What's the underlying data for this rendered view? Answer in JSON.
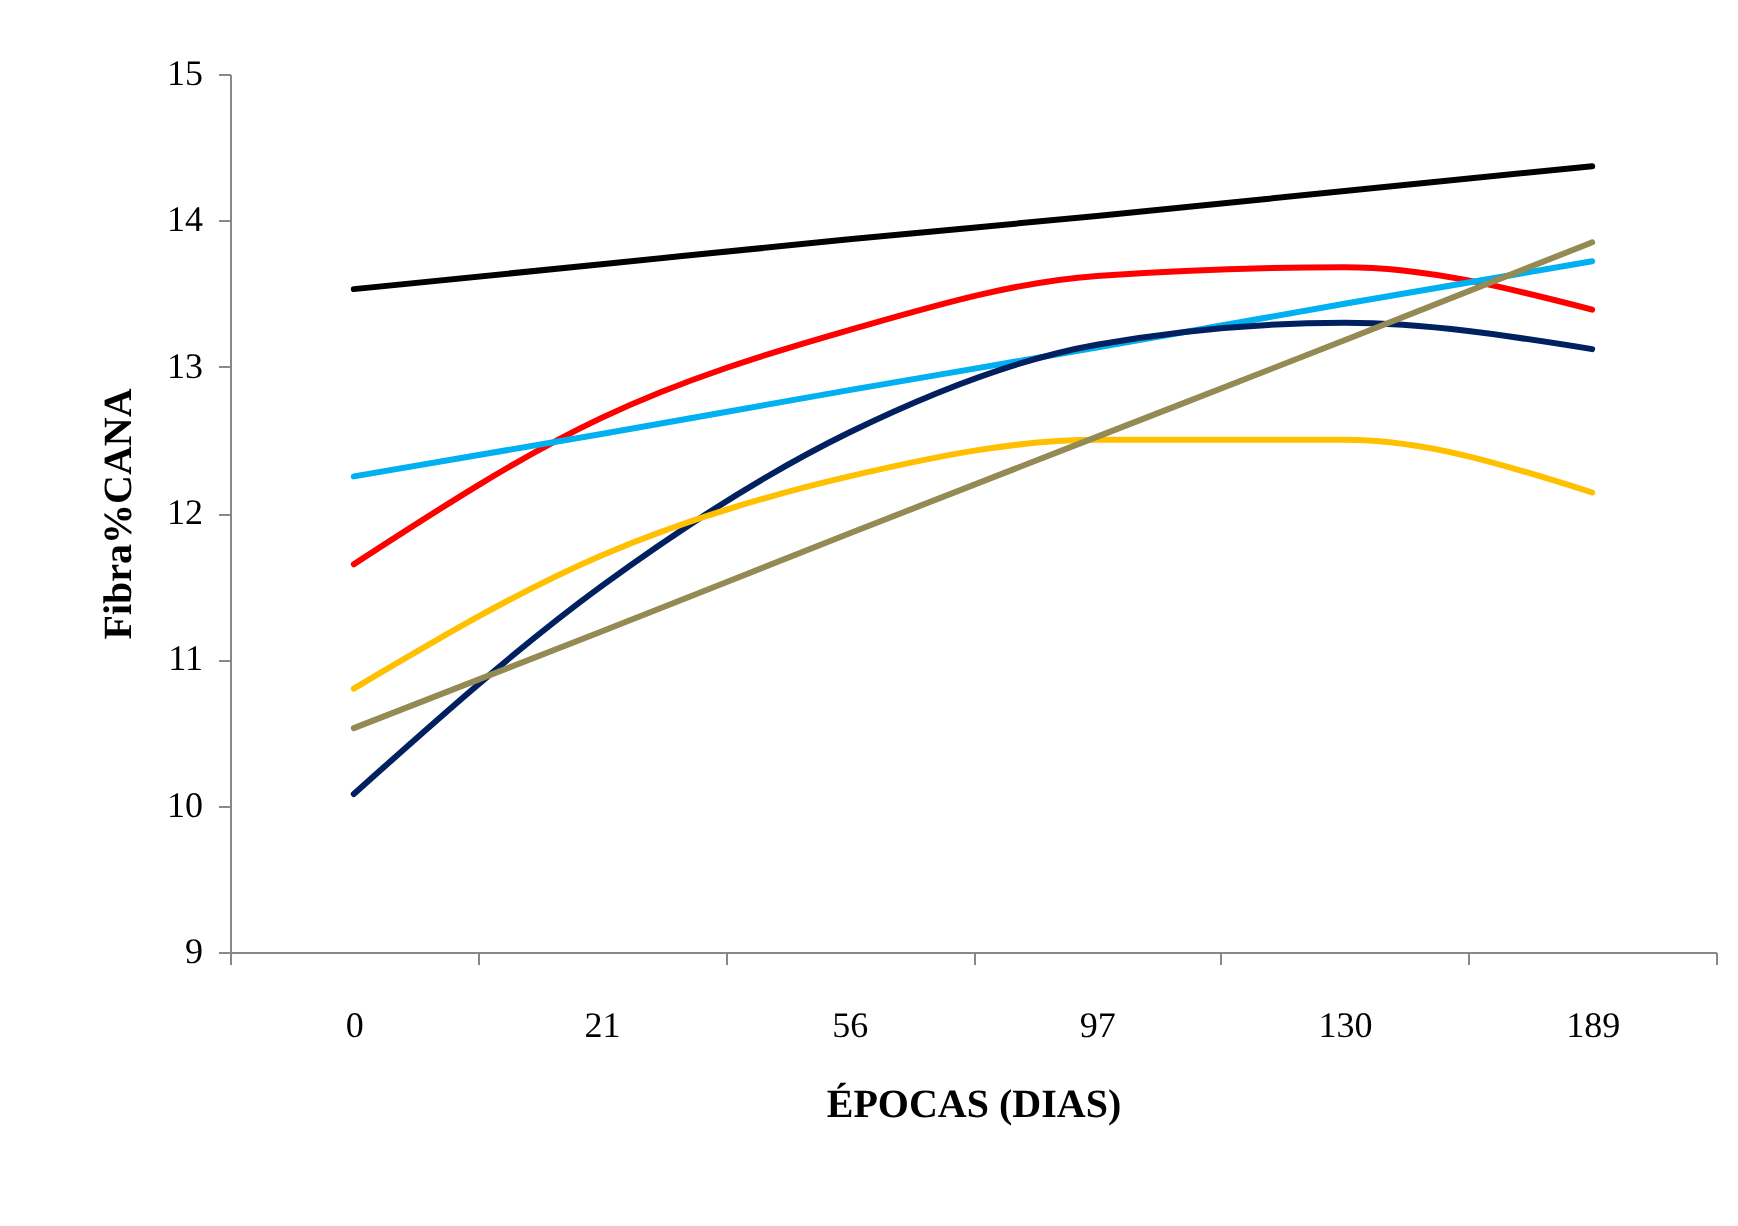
{
  "chart_data": {
    "type": "line",
    "xlabel": "ÉPOCAS (DIAS)",
    "ylabel": "Fibra%CANA",
    "categories": [
      "0",
      "21",
      "56",
      "97",
      "130",
      "189"
    ],
    "series": [
      {
        "color": "#000000",
        "values": [
          13.53,
          13.7,
          13.87,
          14.03,
          14.2,
          14.37
        ]
      },
      {
        "color": "#ff0000",
        "values": [
          11.65,
          12.65,
          13.25,
          13.62,
          13.68,
          13.39
        ]
      },
      {
        "color": "#00b0f0",
        "values": [
          12.25,
          12.54,
          12.84,
          13.13,
          13.43,
          13.72
        ]
      },
      {
        "color": "#002060",
        "values": [
          10.08,
          11.5,
          12.55,
          13.15,
          13.3,
          13.12
        ]
      },
      {
        "color": "#ffc000",
        "values": [
          10.8,
          11.71,
          12.25,
          12.5,
          12.5,
          12.14
        ]
      },
      {
        "color": "#948a54",
        "values": [
          10.53,
          11.19,
          11.86,
          12.52,
          13.18,
          13.85
        ]
      }
    ],
    "ylim": [
      9,
      15
    ],
    "yticks": [
      9,
      10,
      11,
      12,
      13,
      14,
      15
    ],
    "grid": false,
    "legend": false,
    "marker": "none",
    "line_style": "solid"
  }
}
